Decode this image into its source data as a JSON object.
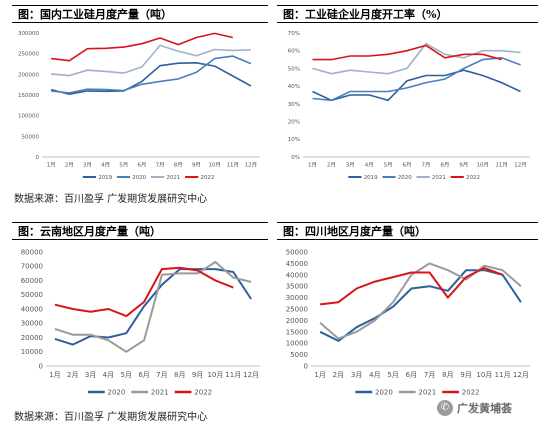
{
  "panels": [
    {
      "title": "图：国内工业硅月度产量（吨）",
      "source": "数据来源：百川盈孚  广发期货发展研究中心"
    },
    {
      "title": "图：工业硅企业月度开工率（%）"
    },
    {
      "title": "图：云南地区月度产量（吨）",
      "source": "数据来源：百川盈孚  广发期货发展研究中心"
    },
    {
      "title": "图：四川地区月度产量（吨）"
    }
  ],
  "watermark": {
    "text": "广发黄埔荟",
    "icon": "wechat-icon"
  },
  "colors": {
    "2019": "#2e5f9e",
    "2020": "#4a7fbd",
    "2021": "#9fb2c9",
    "2022": "#d9141a"
  },
  "chart_data": [
    {
      "type": "line",
      "title": "图：国内工业硅月度产量（吨）",
      "categories": [
        "1月",
        "2月",
        "3月",
        "4月",
        "5月",
        "6月",
        "7月",
        "8月",
        "9月",
        "10月",
        "11月",
        "12月"
      ],
      "ylim": [
        0,
        300000
      ],
      "yticks": [
        0,
        50000,
        100000,
        150000,
        200000,
        250000,
        300000
      ],
      "legend": "bottom",
      "grid": false,
      "series": [
        {
          "name": "2019",
          "color": "#2e5f9e",
          "values": [
            163000,
            152000,
            160000,
            159000,
            160000,
            183000,
            221000,
            227000,
            228000,
            220000,
            196000,
            172000
          ]
        },
        {
          "name": "2020",
          "color": "#4a7fbd",
          "values": [
            160000,
            155000,
            164000,
            163000,
            161000,
            176000,
            183000,
            189000,
            205000,
            238000,
            244000,
            226000
          ]
        },
        {
          "name": "2021",
          "color": "#9fb2c9",
          "values": [
            201000,
            197000,
            210000,
            207000,
            203000,
            218000,
            270000,
            256000,
            245000,
            260000,
            258000,
            259000
          ]
        },
        {
          "name": "2022",
          "color": "#d9141a",
          "values": [
            238000,
            233000,
            262000,
            263000,
            266000,
            274000,
            288000,
            272000,
            289000,
            299000,
            289000,
            null
          ]
        }
      ]
    },
    {
      "type": "line",
      "title": "图：工业硅企业月度开工率（%）",
      "categories": [
        "1月",
        "2月",
        "3月",
        "4月",
        "5月",
        "6月",
        "7月",
        "8月",
        "9月",
        "10月",
        "11月",
        "12月"
      ],
      "ylim": [
        0,
        70
      ],
      "yticks": [
        0,
        10,
        20,
        30,
        40,
        50,
        60,
        70
      ],
      "ytick_suffix": "%",
      "legend": "bottom",
      "grid": false,
      "series": [
        {
          "name": "2019",
          "color": "#2e5f9e",
          "values": [
            37,
            32,
            35,
            35,
            32,
            43,
            46,
            46,
            49,
            46,
            42,
            37
          ]
        },
        {
          "name": "2020",
          "color": "#4a7fbd",
          "values": [
            33,
            32,
            37,
            37,
            37,
            39,
            42,
            44,
            50,
            55,
            56,
            52
          ]
        },
        {
          "name": "2021",
          "color": "#9fb2c9",
          "values": [
            50,
            47,
            49,
            48,
            47,
            50,
            64,
            58,
            56,
            60,
            60,
            59
          ]
        },
        {
          "name": "2022",
          "color": "#d9141a",
          "values": [
            55,
            55,
            57,
            57,
            58,
            60,
            63,
            56,
            58,
            58,
            55,
            null
          ]
        }
      ]
    },
    {
      "type": "line",
      "title": "图：云南地区月度产量（吨）",
      "categories": [
        "1月",
        "2月",
        "3月",
        "4月",
        "5月",
        "6月",
        "7月",
        "8月",
        "9月",
        "10月",
        "11月",
        "12月"
      ],
      "ylim": [
        0,
        80000
      ],
      "yticks": [
        0,
        10000,
        20000,
        30000,
        40000,
        50000,
        60000,
        70000,
        80000
      ],
      "legend": "bottom",
      "grid": false,
      "series": [
        {
          "name": "2020",
          "color": "#2e5f9e",
          "values": [
            19000,
            15000,
            21000,
            20000,
            23000,
            42000,
            57000,
            68000,
            68000,
            68000,
            66000,
            47000
          ]
        },
        {
          "name": "2021",
          "color": "#9a9a9a",
          "values": [
            26000,
            22000,
            22000,
            18000,
            10000,
            18000,
            64000,
            65000,
            65000,
            73000,
            62000,
            59000
          ]
        },
        {
          "name": "2022",
          "color": "#d9141a",
          "values": [
            43000,
            40000,
            38000,
            40000,
            35000,
            45000,
            68000,
            69000,
            67000,
            60000,
            55000,
            null
          ]
        }
      ]
    },
    {
      "type": "line",
      "title": "图：四川地区月度产量（吨）",
      "categories": [
        "1月",
        "2月",
        "3月",
        "4月",
        "5月",
        "6月",
        "7月",
        "8月",
        "9月",
        "10月",
        "11月",
        "12月"
      ],
      "ylim": [
        0,
        50000
      ],
      "yticks": [
        0,
        5000,
        10000,
        15000,
        20000,
        25000,
        30000,
        35000,
        40000,
        45000,
        50000
      ],
      "legend": "bottom",
      "grid": false,
      "series": [
        {
          "name": "2020",
          "color": "#2e5f9e",
          "values": [
            15000,
            11000,
            17000,
            21000,
            26000,
            34000,
            35000,
            33000,
            42000,
            42000,
            40000,
            28000
          ]
        },
        {
          "name": "2021",
          "color": "#9a9a9a",
          "values": [
            19000,
            12000,
            15000,
            20000,
            28000,
            40000,
            45000,
            42000,
            38000,
            44000,
            42000,
            35000
          ]
        },
        {
          "name": "2022",
          "color": "#d9141a",
          "values": [
            27000,
            28000,
            34000,
            37000,
            39000,
            41000,
            41000,
            30000,
            39000,
            43000,
            40000,
            null
          ]
        }
      ]
    }
  ]
}
